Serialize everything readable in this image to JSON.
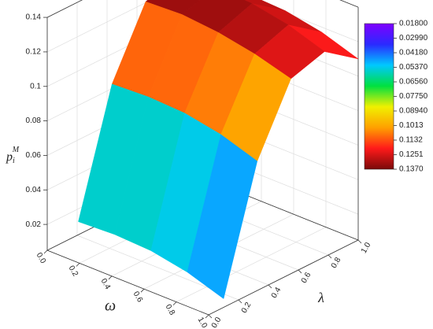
{
  "chart_data": {
    "type": "surface",
    "xlabel": "ω",
    "ylabel": "λ",
    "zlabel": {
      "base": "p",
      "sub": "i",
      "sup": "M"
    },
    "x": [
      0.1,
      0.325,
      0.55,
      0.775,
      1.0
    ],
    "y": [
      0.1,
      0.325,
      0.55,
      0.775,
      1.0
    ],
    "z": [
      [
        0.021,
        0.091,
        0.129,
        0.135,
        0.121
      ],
      [
        0.022,
        0.092,
        0.13,
        0.136,
        0.122
      ],
      [
        0.021,
        0.091,
        0.128,
        0.135,
        0.121
      ],
      [
        0.017,
        0.087,
        0.124,
        0.131,
        0.117
      ],
      [
        0.01,
        0.08,
        0.118,
        0.124,
        0.11
      ]
    ],
    "xlim": [
      0,
      1
    ],
    "ylim": [
      0,
      1
    ],
    "zlim": [
      0.005,
      0.14
    ],
    "xticks": [
      {
        "value": 0,
        "label": "0.0"
      },
      {
        "value": 0.2,
        "label": "0.2"
      },
      {
        "value": 0.4,
        "label": "0.4"
      },
      {
        "value": 0.6,
        "label": "0.6"
      },
      {
        "value": 0.8,
        "label": "0.8"
      },
      {
        "value": 1,
        "label": "1.0"
      }
    ],
    "yticks": [
      {
        "value": 0,
        "label": "0.0"
      },
      {
        "value": 0.2,
        "label": "0.2"
      },
      {
        "value": 0.4,
        "label": "0.4"
      },
      {
        "value": 0.6,
        "label": "0.6"
      },
      {
        "value": 0.8,
        "label": "0.8"
      },
      {
        "value": 1,
        "label": "1.0"
      }
    ],
    "zticks": [
      0.02,
      0.04,
      0.06,
      0.08,
      0.1,
      0.12,
      0.14
    ],
    "colorscale": [
      "#7f00ff",
      "#2a2aff",
      "#00c8ff",
      "#00e040",
      "#f0f000",
      "#ffa000",
      "#ff1a1a",
      "#7a0a0a"
    ],
    "colorbar": {
      "lim": [
        0.018,
        0.137
      ],
      "ticks": [
        {
          "value": 0.018,
          "label": "0.01800"
        },
        {
          "value": 0.0299,
          "label": "0.02990"
        },
        {
          "value": 0.0418,
          "label": "0.04180"
        },
        {
          "value": 0.0537,
          "label": "0.05370"
        },
        {
          "value": 0.0656,
          "label": "0.06560"
        },
        {
          "value": 0.0775,
          "label": "0.07750"
        },
        {
          "value": 0.0894,
          "label": "0.08940"
        },
        {
          "value": 0.1013,
          "label": "0.1013"
        },
        {
          "value": 0.1132,
          "label": "0.1132"
        },
        {
          "value": 0.1251,
          "label": "0.1251"
        },
        {
          "value": 0.137,
          "label": "0.1370"
        }
      ]
    },
    "grid": true
  }
}
